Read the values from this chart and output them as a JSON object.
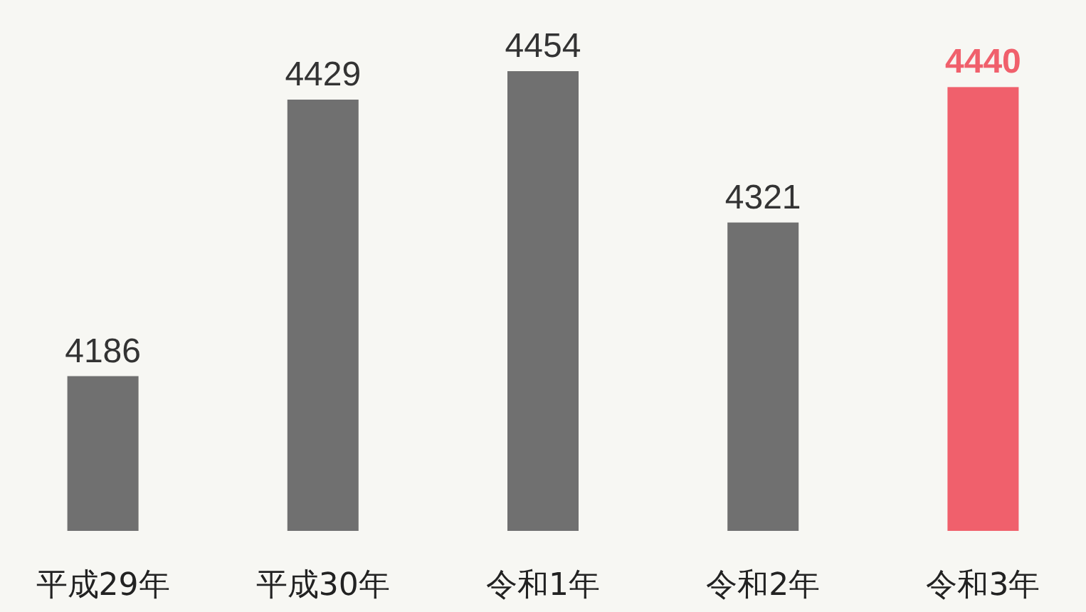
{
  "chart_data": {
    "type": "bar",
    "categories": [
      "平成29年",
      "平成30年",
      "令和1年",
      "令和2年",
      "令和3年"
    ],
    "values": [
      4186,
      4429,
      4454,
      4321,
      4440
    ],
    "colors": [
      "#707070",
      "#707070",
      "#707070",
      "#707070",
      "#f0606c"
    ],
    "ylim": [
      4050,
      4454
    ],
    "data_labels": true
  }
}
